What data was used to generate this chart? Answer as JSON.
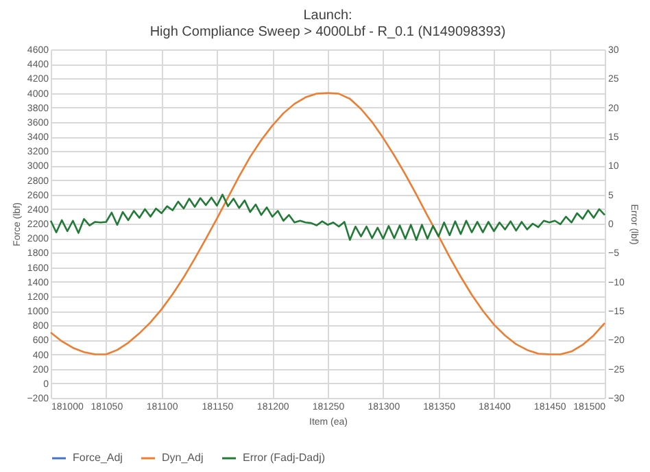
{
  "chart_data": {
    "type": "line",
    "title": "Launch:\nHigh Compliance Sweep > 4000Lbf - R_0.1 (N149098393)",
    "xlabel": "Item (ea)",
    "ylabel": "Force (lbf)",
    "y2label": "Error (lbf)",
    "xlim": [
      181000,
      181500
    ],
    "xticks": [
      181000,
      181050,
      181100,
      181150,
      181200,
      181250,
      181300,
      181350,
      181400,
      181450,
      181500
    ],
    "ylim": [
      -200,
      4600
    ],
    "yticks": [
      -200,
      0,
      200,
      400,
      600,
      800,
      1000,
      1200,
      1400,
      1600,
      1800,
      2000,
      2200,
      2400,
      2600,
      2800,
      3000,
      3200,
      3400,
      3600,
      3800,
      4000,
      4200,
      4400,
      4600
    ],
    "y2lim": [
      -30,
      30
    ],
    "y2ticks": [
      -30,
      -25,
      -20,
      -15,
      -10,
      -5,
      0,
      5,
      10,
      15,
      20,
      25,
      30
    ],
    "grid": true,
    "legend": "bottom",
    "line_style": "solid",
    "marker": "none",
    "series": [
      {
        "name": "Force_Adj",
        "color": "#4472c4"
      },
      {
        "name": "Dyn_Adj",
        "color": "#ed7d31",
        "axis": "y",
        "x": [
          181000,
          181010,
          181020,
          181030,
          181040,
          181050,
          181060,
          181070,
          181080,
          181090,
          181100,
          181110,
          181120,
          181130,
          181140,
          181150,
          181160,
          181170,
          181180,
          181190,
          181200,
          181210,
          181220,
          181230,
          181240,
          181250,
          181260,
          181270,
          181280,
          181290,
          181300,
          181310,
          181320,
          181330,
          181340,
          181350,
          181360,
          181370,
          181380,
          181390,
          181400,
          181410,
          181420,
          181430,
          181440,
          181450,
          181460,
          181470,
          181480,
          181490,
          181500
        ],
        "values": [
          700,
          580,
          490,
          430,
          400,
          400,
          460,
          560,
          690,
          840,
          1020,
          1230,
          1460,
          1720,
          1990,
          2270,
          2560,
          2850,
          3120,
          3350,
          3550,
          3720,
          3850,
          3940,
          3990,
          4000,
          3990,
          3920,
          3780,
          3600,
          3380,
          3140,
          2880,
          2600,
          2310,
          2030,
          1740,
          1470,
          1220,
          1000,
          810,
          660,
          540,
          460,
          410,
          400,
          400,
          440,
          530,
          660,
          830
        ]
      },
      {
        "name": "Error (Fadj-Dadj)",
        "color": "#217a36",
        "axis": "y2",
        "x": [
          181000,
          181005,
          181010,
          181015,
          181020,
          181025,
          181030,
          181035,
          181040,
          181045,
          181050,
          181055,
          181060,
          181065,
          181070,
          181075,
          181080,
          181085,
          181090,
          181095,
          181100,
          181105,
          181110,
          181115,
          181120,
          181125,
          181130,
          181135,
          181140,
          181145,
          181150,
          181155,
          181160,
          181165,
          181170,
          181175,
          181180,
          181185,
          181190,
          181195,
          181200,
          181205,
          181210,
          181215,
          181220,
          181225,
          181230,
          181235,
          181240,
          181245,
          181250,
          181255,
          181260,
          181265,
          181270,
          181275,
          181280,
          181285,
          181290,
          181295,
          181300,
          181305,
          181310,
          181315,
          181320,
          181325,
          181330,
          181335,
          181340,
          181345,
          181350,
          181355,
          181360,
          181365,
          181370,
          181375,
          181380,
          181385,
          181390,
          181395,
          181400,
          181405,
          181410,
          181415,
          181420,
          181425,
          181430,
          181435,
          181440,
          181445,
          181450,
          181455,
          181460,
          181465,
          181470,
          181475,
          181480,
          181485,
          181490,
          181495,
          181500
        ],
        "values": [
          0.5,
          -1.5,
          0.6,
          -1.3,
          0.5,
          -1.6,
          0.8,
          -0.3,
          0.3,
          0.2,
          0.3,
          1.9,
          -0.2,
          2.0,
          0.6,
          2.2,
          1.0,
          2.5,
          1.2,
          2.6,
          1.8,
          3.0,
          2.3,
          3.8,
          2.6,
          4.3,
          2.9,
          4.4,
          3.2,
          4.5,
          3.1,
          5.0,
          3.0,
          4.3,
          2.7,
          4.0,
          2.0,
          3.3,
          1.5,
          2.8,
          1.2,
          2.2,
          0.5,
          1.5,
          0.2,
          0.5,
          0.2,
          0.1,
          -0.3,
          0.4,
          -0.2,
          0.2,
          -0.5,
          0.3,
          -2.8,
          -0.5,
          -2.2,
          -0.5,
          -2.5,
          -0.7,
          -2.6,
          -0.4,
          -2.5,
          -0.3,
          -2.6,
          -0.2,
          -2.8,
          -0.2,
          -2.6,
          -0.4,
          -2.2,
          0.2,
          -2.0,
          0.4,
          -1.8,
          0.5,
          -1.5,
          0.3,
          -1.5,
          0.3,
          -1.3,
          0.2,
          -1.0,
          0.4,
          -1.2,
          0.3,
          -1.0,
          0.0,
          -0.6,
          0.5,
          0.2,
          0.5,
          -0.1,
          1.2,
          0.2,
          1.8,
          0.8,
          2.3,
          1.0,
          2.5,
          1.5
        ]
      }
    ]
  }
}
